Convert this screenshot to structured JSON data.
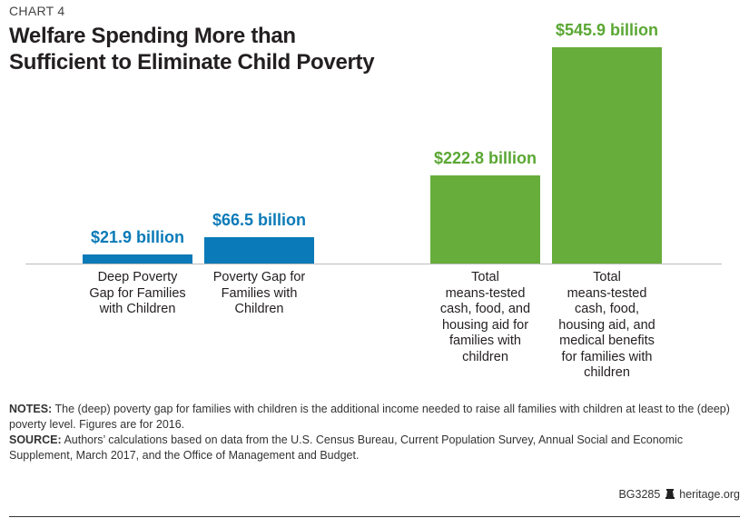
{
  "kicker": "CHART 4",
  "title_line1": "Welfare Spending More than",
  "title_line2": "Sufficient to Eliminate Child Poverty",
  "chart_data": {
    "type": "bar",
    "unit": "billion USD",
    "categories": [
      "Deep Poverty Gap for Families with Children",
      "Poverty Gap for Families with Children",
      "Total means-tested cash, food, and housing aid for families with children",
      "Total means-tested cash, food, housing aid, and medical benefits for families with children"
    ],
    "values": [
      21.9,
      66.5,
      222.8,
      545.9
    ],
    "value_labels": [
      "$21.9 billion",
      "$66.5 billion",
      "$222.8 billion",
      "$545.9 billion"
    ],
    "colors": [
      "#0a7ab8",
      "#0a7ab8",
      "#67ad3b",
      "#67ad3b"
    ],
    "label_colors": [
      "#0a7ab8",
      "#0a7ab8",
      "#5aa733",
      "#5aa733"
    ],
    "grid": false,
    "ylim": [
      0,
      545.9
    ]
  },
  "notes_label": "NOTES:",
  "notes_text": " The (deep) poverty gap for families with children is the additional income needed to raise all families with children at least to the (deep) poverty level. Figures are for 2016.",
  "source_label": "SOURCE:",
  "source_text": " Authors’ calculations based on data from the U.S. Census Bureau, Current Population Survey, Annual Social and Economic Supplement, March 2017, and the Office of Management and Budget.",
  "credit_id": "BG3285",
  "credit_icon": "liberty-bell-icon",
  "credit_site": "heritage.org"
}
